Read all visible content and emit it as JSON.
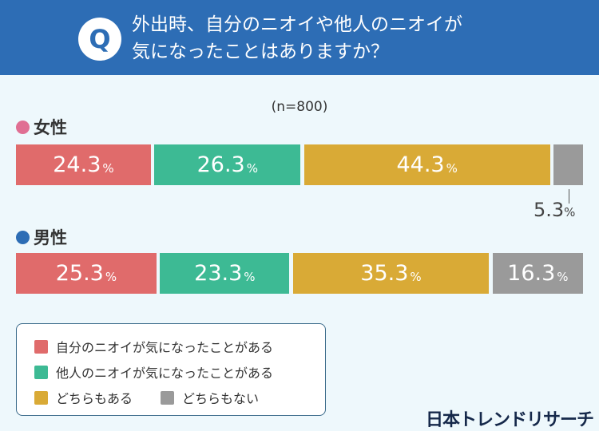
{
  "header": {
    "q": "Q",
    "title_line1": "外出時、自分のニオイや他人のニオイが",
    "title_line2": "気になったことはありますか？"
  },
  "colors": {
    "header": "#2d6db5",
    "female": "#e06f93",
    "male": "#2d6db5",
    "self": "#e06b6b",
    "other": "#3dba94",
    "both": "#d9aa36",
    "neither": "#9a9a9a"
  },
  "chart_data": {
    "type": "bar",
    "orientation": "horizontal",
    "stacked": true,
    "percent": true,
    "note": "(n=800)",
    "categories": [
      "女性",
      "男性"
    ],
    "series": [
      {
        "name": "自分のニオイが気になったことがある",
        "values": [
          24.3,
          25.3
        ]
      },
      {
        "name": "他人のニオイが気になったことがある",
        "values": [
          26.3,
          23.3
        ]
      },
      {
        "name": "どちらもある",
        "values": [
          44.3,
          35.3
        ]
      },
      {
        "name": "どちらもない",
        "values": [
          5.3,
          16.3
        ]
      }
    ],
    "unit": "%",
    "legend": "bottom-left"
  },
  "logo": "日本トレンドリサーチ"
}
